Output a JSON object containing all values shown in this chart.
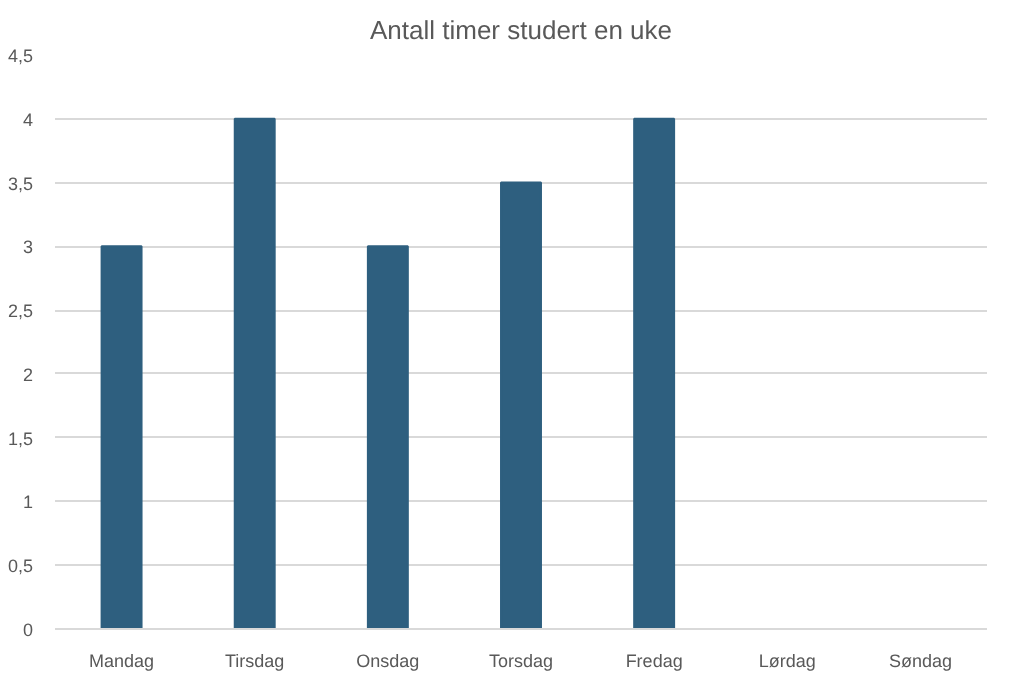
{
  "chart_data": {
    "type": "bar",
    "title": "Antall timer studert en uke",
    "categories": [
      "Mandag",
      "Tirsdag",
      "Onsdag",
      "Torsdag",
      "Fredag",
      "Lørdag",
      "Søndag"
    ],
    "values": [
      3,
      4,
      3,
      3.5,
      4,
      0,
      0
    ],
    "color": "#2e5f7f",
    "ylim": [
      0,
      4.5
    ],
    "yticks": [
      0,
      {
        "value": 0.5,
        "label": "0,5"
      },
      1,
      {
        "value": 1.5,
        "label": "1,5"
      },
      2,
      {
        "value": 2.5,
        "label": "2,5"
      },
      3,
      {
        "value": 3.5,
        "label": "3,5"
      },
      4,
      {
        "value": 4.5,
        "label": "4,5"
      }
    ],
    "grid": "y"
  }
}
